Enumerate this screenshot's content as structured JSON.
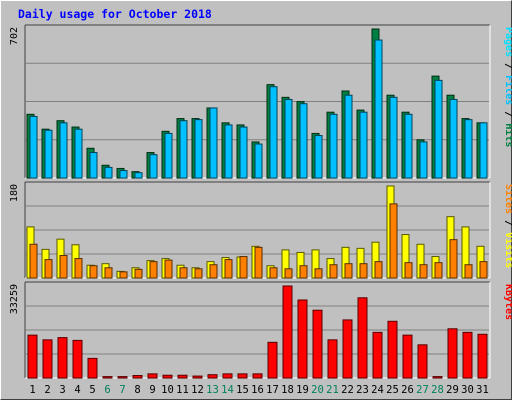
{
  "title": "Daily usage for October 2018",
  "colors": {
    "background": "#c0c0c0",
    "plot_bg": "#c0c0c0",
    "title": "#0000ff",
    "hits": "#008040",
    "files": "#00c0ff",
    "pages": "#00e0ff",
    "visits": "#ffff00",
    "sites": "#ff8000",
    "kbytes": "#ff0000",
    "weekend_label": "#00805c",
    "weekday_label": "#000080"
  },
  "chart_data": [
    {
      "type": "bar",
      "panel": "top",
      "max_label": "702",
      "ylim": [
        0,
        702
      ],
      "legend": [
        {
          "text": "Hits",
          "color_key": "hits"
        },
        {
          "text": "Files",
          "color_key": "files"
        },
        {
          "text": "Pages",
          "color_key": "pages"
        }
      ],
      "legend_sep": "/",
      "categories": [
        "1",
        "2",
        "3",
        "4",
        "5",
        "6",
        "7",
        "8",
        "9",
        "10",
        "11",
        "12",
        "13",
        "14",
        "15",
        "16",
        "17",
        "18",
        "19",
        "20",
        "21",
        "22",
        "23",
        "24",
        "25",
        "26",
        "27",
        "28",
        "29",
        "30",
        "31"
      ],
      "series": [
        {
          "name": "Hits",
          "color_key": "hits",
          "values": [
            300,
            230,
            270,
            240,
            140,
            60,
            45,
            30,
            120,
            220,
            280,
            280,
            330,
            260,
            250,
            170,
            440,
            380,
            360,
            210,
            310,
            410,
            320,
            702,
            390,
            310,
            180,
            480,
            390,
            280,
            260
          ]
        },
        {
          "name": "Files",
          "color_key": "files",
          "values": [
            290,
            225,
            260,
            230,
            120,
            50,
            35,
            25,
            110,
            210,
            270,
            275,
            330,
            250,
            240,
            160,
            430,
            370,
            350,
            200,
            300,
            390,
            310,
            650,
            380,
            300,
            170,
            460,
            370,
            275,
            260
          ]
        }
      ]
    },
    {
      "type": "bar",
      "panel": "middle",
      "max_label": "180",
      "ylim": [
        0,
        180
      ],
      "legend": [
        {
          "text": "Visits",
          "color_key": "visits"
        },
        {
          "text": "Sites",
          "color_key": "sites"
        }
      ],
      "legend_sep": "/",
      "categories": [
        "1",
        "2",
        "3",
        "4",
        "5",
        "6",
        "7",
        "8",
        "9",
        "10",
        "11",
        "12",
        "13",
        "14",
        "15",
        "16",
        "17",
        "18",
        "19",
        "20",
        "21",
        "22",
        "23",
        "24",
        "25",
        "26",
        "27",
        "28",
        "29",
        "30",
        "31"
      ],
      "series": [
        {
          "name": "Visits",
          "color_key": "visits",
          "values": [
            100,
            56,
            76,
            65,
            25,
            28,
            13,
            20,
            34,
            38,
            25,
            20,
            32,
            40,
            41,
            62,
            24,
            55,
            50,
            55,
            38,
            60,
            58,
            70,
            180,
            85,
            66,
            42,
            120,
            100,
            62
          ]
        },
        {
          "name": "Sites",
          "color_key": "sites",
          "values": [
            66,
            36,
            44,
            38,
            24,
            20,
            12,
            17,
            32,
            35,
            20,
            18,
            26,
            36,
            42,
            60,
            20,
            18,
            24,
            18,
            26,
            28,
            28,
            32,
            145,
            30,
            26,
            30,
            75,
            26,
            32
          ]
        }
      ]
    },
    {
      "type": "bar",
      "panel": "bottom",
      "max_label": "33259",
      "ylim": [
        0,
        33259
      ],
      "legend": [
        {
          "text": "KBytes",
          "color_key": "kbytes"
        }
      ],
      "legend_sep": "",
      "categories": [
        "1",
        "2",
        "3",
        "4",
        "5",
        "6",
        "7",
        "8",
        "9",
        "10",
        "11",
        "12",
        "13",
        "14",
        "15",
        "16",
        "17",
        "18",
        "19",
        "20",
        "21",
        "22",
        "23",
        "24",
        "25",
        "26",
        "27",
        "28",
        "29",
        "30",
        "31"
      ],
      "series": [
        {
          "name": "KBytes",
          "color_key": "kbytes",
          "values": [
            15500,
            13800,
            14600,
            13600,
            7100,
            500,
            500,
            900,
            1500,
            1000,
            1000,
            700,
            1200,
            1500,
            1500,
            1500,
            12900,
            33259,
            28200,
            24500,
            13800,
            21000,
            29000,
            16500,
            20500,
            15500,
            12000,
            500,
            17800,
            16500,
            15800
          ]
        }
      ]
    }
  ],
  "weekend_days": [
    "6",
    "7",
    "13",
    "14",
    "20",
    "21",
    "27",
    "28"
  ]
}
